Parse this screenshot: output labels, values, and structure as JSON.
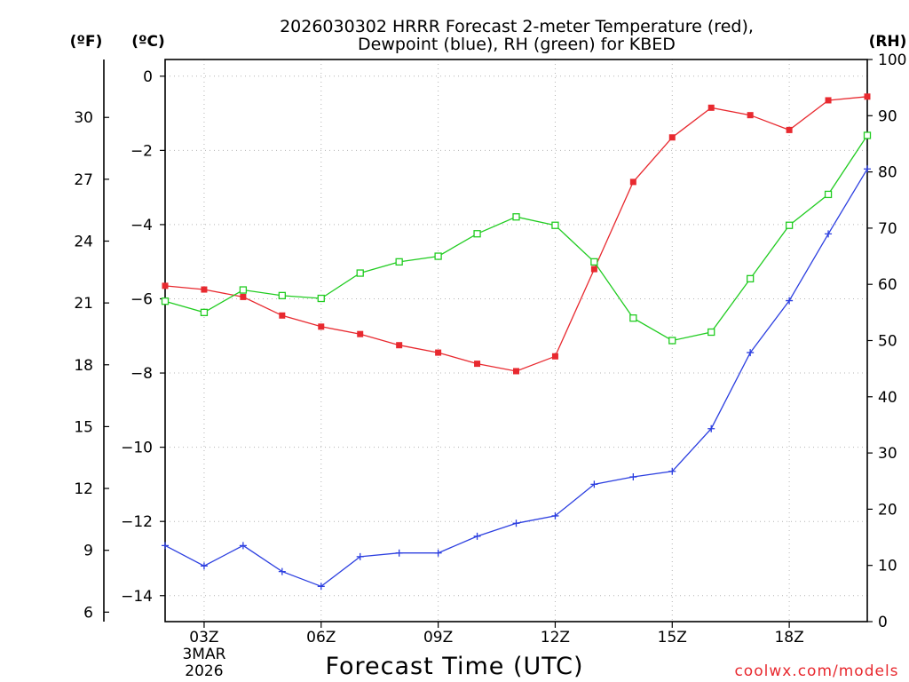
{
  "chart_data": {
    "type": "line",
    "title_line1": "2026030302 HRRR Forecast 2-meter Temperature (red),",
    "title_line2": "Dewpoint (blue), RH (green) for KBED",
    "xlabel": "Forecast Time (UTC)",
    "credit": "coolwx.com/models",
    "units": {
      "fahrenheit": "(ºF)",
      "celsius": "(ºC)",
      "rh": "(RH)"
    },
    "x_hours": [
      2,
      3,
      4,
      5,
      6,
      7,
      8,
      9,
      10,
      11,
      12,
      13,
      14,
      15,
      16,
      17,
      18,
      19,
      20
    ],
    "x_ticks": [
      {
        "hour": 3,
        "label": "03Z",
        "sub1": "3MAR",
        "sub2": "2026"
      },
      {
        "hour": 6,
        "label": "06Z"
      },
      {
        "hour": 9,
        "label": "09Z"
      },
      {
        "hour": 12,
        "label": "12Z"
      },
      {
        "hour": 15,
        "label": "15Z"
      },
      {
        "hour": 18,
        "label": "18Z"
      }
    ],
    "celsius_axis": {
      "min": -14.7,
      "max": 0.45,
      "ticks": [
        0,
        -2,
        -4,
        -6,
        -8,
        -10,
        -12,
        -14
      ],
      "tick_labels": [
        "0",
        "−2",
        "−4",
        "−6",
        "−8",
        "−10",
        "−12",
        "−14"
      ]
    },
    "fahrenheit_ticks": [
      30,
      27,
      24,
      21,
      18,
      15,
      12,
      9,
      6
    ],
    "rh_axis": {
      "min": 0,
      "max": 100,
      "ticks": [
        0,
        10,
        20,
        30,
        40,
        50,
        60,
        70,
        80,
        90,
        100
      ]
    },
    "series": [
      {
        "name": "Temperature",
        "unit": "C",
        "color": "#e8292f",
        "marker": "filled-square",
        "values": [
          -5.65,
          -5.75,
          -5.95,
          -6.45,
          -6.75,
          -6.95,
          -7.25,
          -7.45,
          -7.75,
          -7.95,
          -7.55,
          -5.2,
          -2.85,
          -1.65,
          -0.85,
          -1.05,
          -1.45,
          -0.65,
          -0.55
        ]
      },
      {
        "name": "Dewpoint",
        "unit": "C",
        "color": "#2c3fe0",
        "marker": "plus",
        "values": [
          -12.65,
          -13.2,
          -12.65,
          -13.35,
          -13.75,
          -12.95,
          -12.85,
          -12.85,
          -12.4,
          -12.05,
          -11.85,
          -11.0,
          -10.8,
          -10.65,
          -9.5,
          -7.45,
          -6.05,
          -4.25,
          -2.5
        ]
      },
      {
        "name": "RH",
        "unit": "%",
        "color": "#21cc21",
        "marker": "open-square",
        "values": [
          57,
          55,
          59,
          58,
          57.5,
          62,
          64,
          65,
          69,
          72,
          70.5,
          64,
          54,
          50,
          51.5,
          61,
          70.5,
          76,
          86.5
        ]
      }
    ]
  }
}
